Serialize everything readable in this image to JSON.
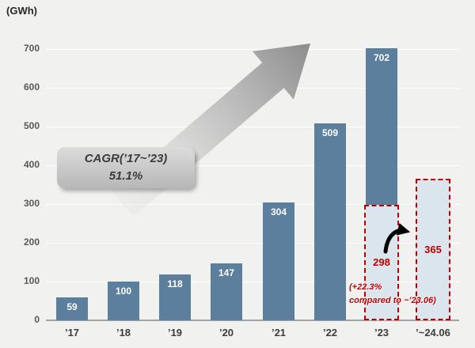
{
  "unit_label": "(GWh)",
  "cagr_box": {
    "line1": "CAGR(’17~’23)",
    "line2": "51.1%"
  },
  "comparison_note": {
    "line1": "(+22.3%",
    "line2": "compared to ~’23.06)"
  },
  "colors": {
    "bar": "#5c7f9e",
    "highlight_fill": "#dbe5ee",
    "highlight_border": "#c00000",
    "accent_red": "#c00000",
    "background": "#f1f1ef",
    "arrow_gray": "#8c8c8c"
  },
  "chart_data": {
    "type": "bar",
    "title": "",
    "ylabel": "(GWh)",
    "xlabel": "",
    "categories": [
      "’17",
      "’18",
      "’19",
      "’20",
      "’21",
      "’22",
      "’23",
      "’~24.06"
    ],
    "values": [
      59,
      100,
      118,
      147,
      304,
      509,
      702,
      365
    ],
    "highlighted_bars": [
      7
    ],
    "overlays": [
      {
        "category_index": 6,
        "value": 298,
        "note": "highlighted lower portion of ’23 bar"
      }
    ],
    "ylim": [
      0,
      700
    ],
    "yticks": [
      0,
      100,
      200,
      300,
      400,
      500,
      600,
      700
    ],
    "grid": true,
    "legend": "none",
    "annotations": [
      "CAGR(’17~’23) 51.1%",
      "(+22.3% compared to ~’23.06)"
    ]
  }
}
